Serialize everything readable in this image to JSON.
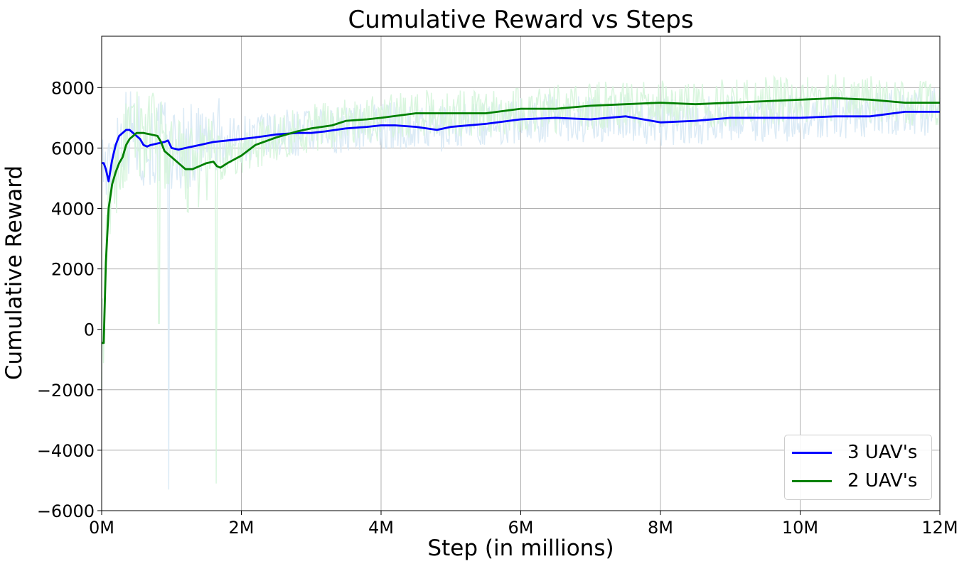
{
  "chart_data": {
    "type": "line",
    "title": "Cumulative Reward vs Steps",
    "xlabel": "Step (in millions)",
    "ylabel": "Cumulative Reward",
    "xlim": [
      0,
      12
    ],
    "ylim": [
      -6000,
      9700
    ],
    "x_ticks": [
      0,
      2,
      4,
      6,
      8,
      10,
      12
    ],
    "x_tick_labels": [
      "0M",
      "2M",
      "4M",
      "6M",
      "8M",
      "10M",
      "12M"
    ],
    "y_ticks": [
      -6000,
      -4000,
      -2000,
      0,
      2000,
      4000,
      6000,
      8000
    ],
    "y_tick_labels": [
      "−6000",
      "−4000",
      "−2000",
      "0",
      "2000",
      "4000",
      "6000",
      "8000"
    ],
    "grid": true,
    "legend_position": "lower-right",
    "series": [
      {
        "name": "3 UAV's",
        "color": "#0000ff",
        "raw_color": "#d6e8f5",
        "x": [
          0,
          0.03,
          0.06,
          0.1,
          0.15,
          0.2,
          0.25,
          0.3,
          0.35,
          0.4,
          0.45,
          0.5,
          0.55,
          0.6,
          0.65,
          0.7,
          0.8,
          0.9,
          0.95,
          1.0,
          1.1,
          1.2,
          1.4,
          1.6,
          1.8,
          2.0,
          2.2,
          2.5,
          2.8,
          3.0,
          3.2,
          3.5,
          3.8,
          4.0,
          4.2,
          4.5,
          4.8,
          5.0,
          5.5,
          6.0,
          6.5,
          7.0,
          7.5,
          8.0,
          8.5,
          9.0,
          9.5,
          10.0,
          10.5,
          11.0,
          11.5,
          12.0
        ],
        "values": [
          5500,
          5500,
          5300,
          4900,
          5600,
          6100,
          6400,
          6500,
          6600,
          6600,
          6500,
          6400,
          6300,
          6100,
          6050,
          6100,
          6150,
          6200,
          6250,
          6000,
          5950,
          6000,
          6100,
          6200,
          6250,
          6300,
          6350,
          6450,
          6500,
          6500,
          6550,
          6650,
          6700,
          6750,
          6750,
          6700,
          6600,
          6700,
          6800,
          6950,
          7000,
          6950,
          7050,
          6850,
          6900,
          7000,
          7000,
          7000,
          7050,
          7050,
          7200,
          7200
        ]
      },
      {
        "name": "2 UAV's",
        "color": "#008000",
        "raw_color": "#d4f5d9",
        "x": [
          0,
          0.03,
          0.06,
          0.1,
          0.15,
          0.2,
          0.25,
          0.3,
          0.35,
          0.4,
          0.5,
          0.55,
          0.6,
          0.7,
          0.8,
          0.85,
          0.9,
          1.0,
          1.1,
          1.2,
          1.3,
          1.4,
          1.5,
          1.6,
          1.65,
          1.7,
          1.8,
          2.0,
          2.2,
          2.5,
          2.8,
          3.0,
          3.3,
          3.5,
          3.8,
          4.0,
          4.5,
          5.0,
          5.5,
          6.0,
          6.5,
          7.0,
          7.5,
          8.0,
          8.5,
          9.0,
          9.5,
          10.0,
          10.5,
          11.0,
          11.5,
          12.0
        ],
        "values": [
          -450,
          -450,
          2200,
          4000,
          4800,
          5200,
          5500,
          5700,
          6100,
          6300,
          6500,
          6500,
          6500,
          6450,
          6400,
          6200,
          5900,
          5700,
          5500,
          5300,
          5300,
          5400,
          5500,
          5550,
          5400,
          5350,
          5500,
          5750,
          6100,
          6350,
          6550,
          6650,
          6750,
          6900,
          6950,
          7000,
          7150,
          7150,
          7150,
          7300,
          7300,
          7400,
          7450,
          7500,
          7450,
          7500,
          7550,
          7600,
          7650,
          7600,
          7500,
          7500
        ]
      }
    ]
  }
}
